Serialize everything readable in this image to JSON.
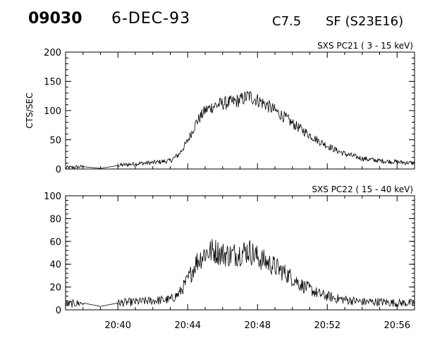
{
  "header": {
    "event_id": "09030",
    "date": "6-DEC-93",
    "goes_class": "C7.5",
    "location": "SF (S23E16)"
  },
  "chart_data": [
    {
      "type": "line",
      "channel_label": "SXS PC21  (  3 - 15 keV)",
      "ylabel": "CTS/SEC",
      "xlabel": "",
      "xlim": [
        "20:37",
        "20:57"
      ],
      "ylim": [
        0,
        200
      ],
      "yticks": [
        0,
        50,
        100,
        150,
        200
      ],
      "xticks": [
        "20:40",
        "20:44",
        "20:48",
        "20:52",
        "20:56"
      ],
      "show_xtick_labels": false,
      "grid": false,
      "x": [
        "20:37:00",
        "20:38:00",
        "20:39:00",
        "20:40:00",
        "20:41:00",
        "20:42:00",
        "20:43:00",
        "20:43:30",
        "20:44:00",
        "20:44:30",
        "20:45:00",
        "20:45:30",
        "20:46:00",
        "20:46:30",
        "20:47:00",
        "20:47:30",
        "20:48:00",
        "20:48:30",
        "20:49:00",
        "20:49:30",
        "20:50:00",
        "20:50:30",
        "20:51:00",
        "20:51:30",
        "20:52:00",
        "20:52:30",
        "20:53:00",
        "20:53:30",
        "20:54:00",
        "20:55:00",
        "20:56:00",
        "20:57:00"
      ],
      "y": [
        2,
        4,
        1,
        6,
        9,
        11,
        14,
        25,
        48,
        80,
        100,
        108,
        112,
        114,
        118,
        125,
        118,
        110,
        100,
        90,
        78,
        68,
        58,
        48,
        40,
        32,
        26,
        22,
        18,
        14,
        12,
        10
      ]
    },
    {
      "type": "line",
      "channel_label": "SXS PC22  ( 15 - 40 keV)",
      "ylabel": "",
      "xlabel": "",
      "xlim": [
        "20:37",
        "20:57"
      ],
      "ylim": [
        0,
        100
      ],
      "yticks": [
        0,
        20,
        40,
        60,
        80,
        100
      ],
      "xticks": [
        "20:40",
        "20:44",
        "20:48",
        "20:52",
        "20:56"
      ],
      "show_xtick_labels": true,
      "grid": false,
      "x": [
        "20:37:00",
        "20:38:00",
        "20:39:00",
        "20:40:00",
        "20:41:00",
        "20:42:00",
        "20:43:00",
        "20:43:30",
        "20:44:00",
        "20:44:30",
        "20:45:00",
        "20:45:30",
        "20:46:00",
        "20:46:30",
        "20:47:00",
        "20:47:30",
        "20:48:00",
        "20:48:30",
        "20:49:00",
        "20:49:30",
        "20:50:00",
        "20:50:30",
        "20:51:00",
        "20:51:30",
        "20:52:00",
        "20:52:30",
        "20:53:00",
        "20:53:30",
        "20:54:00",
        "20:55:00",
        "20:56:00",
        "20:57:00"
      ],
      "y": [
        5,
        6,
        3,
        6,
        7,
        8,
        9,
        14,
        26,
        42,
        50,
        52,
        49,
        48,
        50,
        52,
        46,
        42,
        38,
        33,
        28,
        22,
        18,
        14,
        12,
        10,
        9,
        8,
        7,
        7,
        6,
        6
      ]
    }
  ]
}
